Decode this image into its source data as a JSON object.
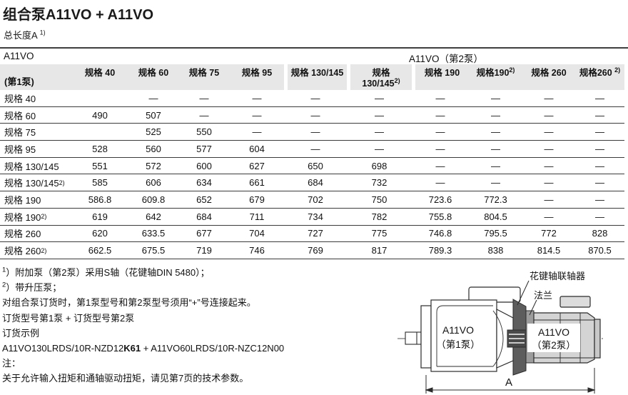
{
  "header": {
    "title": "组合泵A11VO + A11VO",
    "subtitle": "总长度A",
    "subtitle_sup": "1)"
  },
  "table": {
    "pump1_title": "A11VO",
    "pump2_title": "A11VO（第2泵）",
    "pump1_sub": "(第1泵)",
    "columns": [
      {
        "text": "规格 40"
      },
      {
        "text": "规格 60"
      },
      {
        "text": "规格 75"
      },
      {
        "text": "规格 95"
      },
      {
        "text": "规格 130/145"
      },
      {
        "line1": "规格",
        "line2": "130/145",
        "sup": "2)"
      },
      {
        "text": "规格 190"
      },
      {
        "text": "规格190",
        "sup": "2)"
      },
      {
        "text": "规格 260"
      },
      {
        "text": "规格260 ",
        "sup": "2)"
      }
    ],
    "rows": [
      {
        "label": {
          "text": "规格 40"
        },
        "values": [
          "",
          "—",
          "—",
          "—",
          "—",
          "—",
          "—",
          "—",
          "—",
          "—"
        ]
      },
      {
        "label": {
          "text": "规格 60"
        },
        "values": [
          "490",
          "507",
          "—",
          "—",
          "—",
          "—",
          "—",
          "—",
          "—",
          "—"
        ]
      },
      {
        "label": {
          "text": "规格 75"
        },
        "values": [
          "",
          "525",
          "550",
          "—",
          "—",
          "—",
          "—",
          "—",
          "—",
          "—"
        ]
      },
      {
        "label": {
          "text": "规格 95"
        },
        "values": [
          "528",
          "560",
          "577",
          "604",
          "—",
          "—",
          "—",
          "—",
          "—",
          "—"
        ]
      },
      {
        "label": {
          "text": "规格 130/145"
        },
        "values": [
          "551",
          "572",
          "600",
          "627",
          "650",
          "698",
          "—",
          "—",
          "—",
          "—"
        ]
      },
      {
        "label": {
          "text": "规格 130/145",
          "sup": "2)"
        },
        "values": [
          "585",
          "606",
          "634",
          "661",
          "684",
          "732",
          "—",
          "—",
          "—",
          "—"
        ]
      },
      {
        "label": {
          "text": "规格 190"
        },
        "values": [
          "586.8",
          "609.8",
          "652",
          "679",
          "702",
          "750",
          "723.6",
          "772.3",
          "—",
          "—"
        ]
      },
      {
        "label": {
          "text": "规格 190 ",
          "sup": "2)"
        },
        "values": [
          "619",
          "642",
          "684",
          "711",
          "734",
          "782",
          "755.8",
          "804.5",
          "—",
          "—"
        ]
      },
      {
        "label": {
          "text": "规格 260"
        },
        "values": [
          "620",
          "633.5",
          "677",
          "704",
          "727",
          "775",
          "746.8",
          "795.5",
          "772",
          "828"
        ]
      },
      {
        "label": {
          "text": "规格 260 ",
          "sup": "2)"
        },
        "values": [
          "662.5",
          "675.5",
          "719",
          "746",
          "769",
          "817",
          "789.3",
          "838",
          "814.5",
          "870.5"
        ]
      }
    ]
  },
  "notes": {
    "lines": [
      {
        "sup": "1",
        "text": "）附加泵（第2泵）采用S轴（花键轴DIN 5480）；"
      },
      {
        "sup": "2",
        "text": "）带升压泵；"
      },
      {
        "text": "对组合泵订货时，第1泵型号和第2泵型号须用“+”号连接起来。"
      },
      {
        "text": "订货型号第1泵 + 订货型号第2泵"
      },
      {
        "text": "订货示例"
      },
      {
        "parts": [
          {
            "t": "A11VO130LRDS/10R-NZD12"
          },
          {
            "t": "K61",
            "bold": true
          },
          {
            "t": " + A11VO60LRDS/10R-NZC12N00"
          }
        ]
      },
      {
        "text": "注："
      },
      {
        "text": "关于允许输入扭矩和通轴驱动扭矩，请见第7页的技术参数。"
      }
    ]
  },
  "diagram": {
    "coupling_label": "花键轴联轴器",
    "flange_label": "法兰",
    "pump1_name": "A11VO",
    "pump1_sub": "（第1泵）",
    "pump2_name": "A11VO",
    "pump2_sub": "（第2泵）",
    "dim_label": "A"
  },
  "colors": {
    "header_gray": "#e7e7e7",
    "rule": "#3f3f3f",
    "pump2_fill": "#d4d4d4",
    "coupling_fill": "#5d5d5d"
  }
}
